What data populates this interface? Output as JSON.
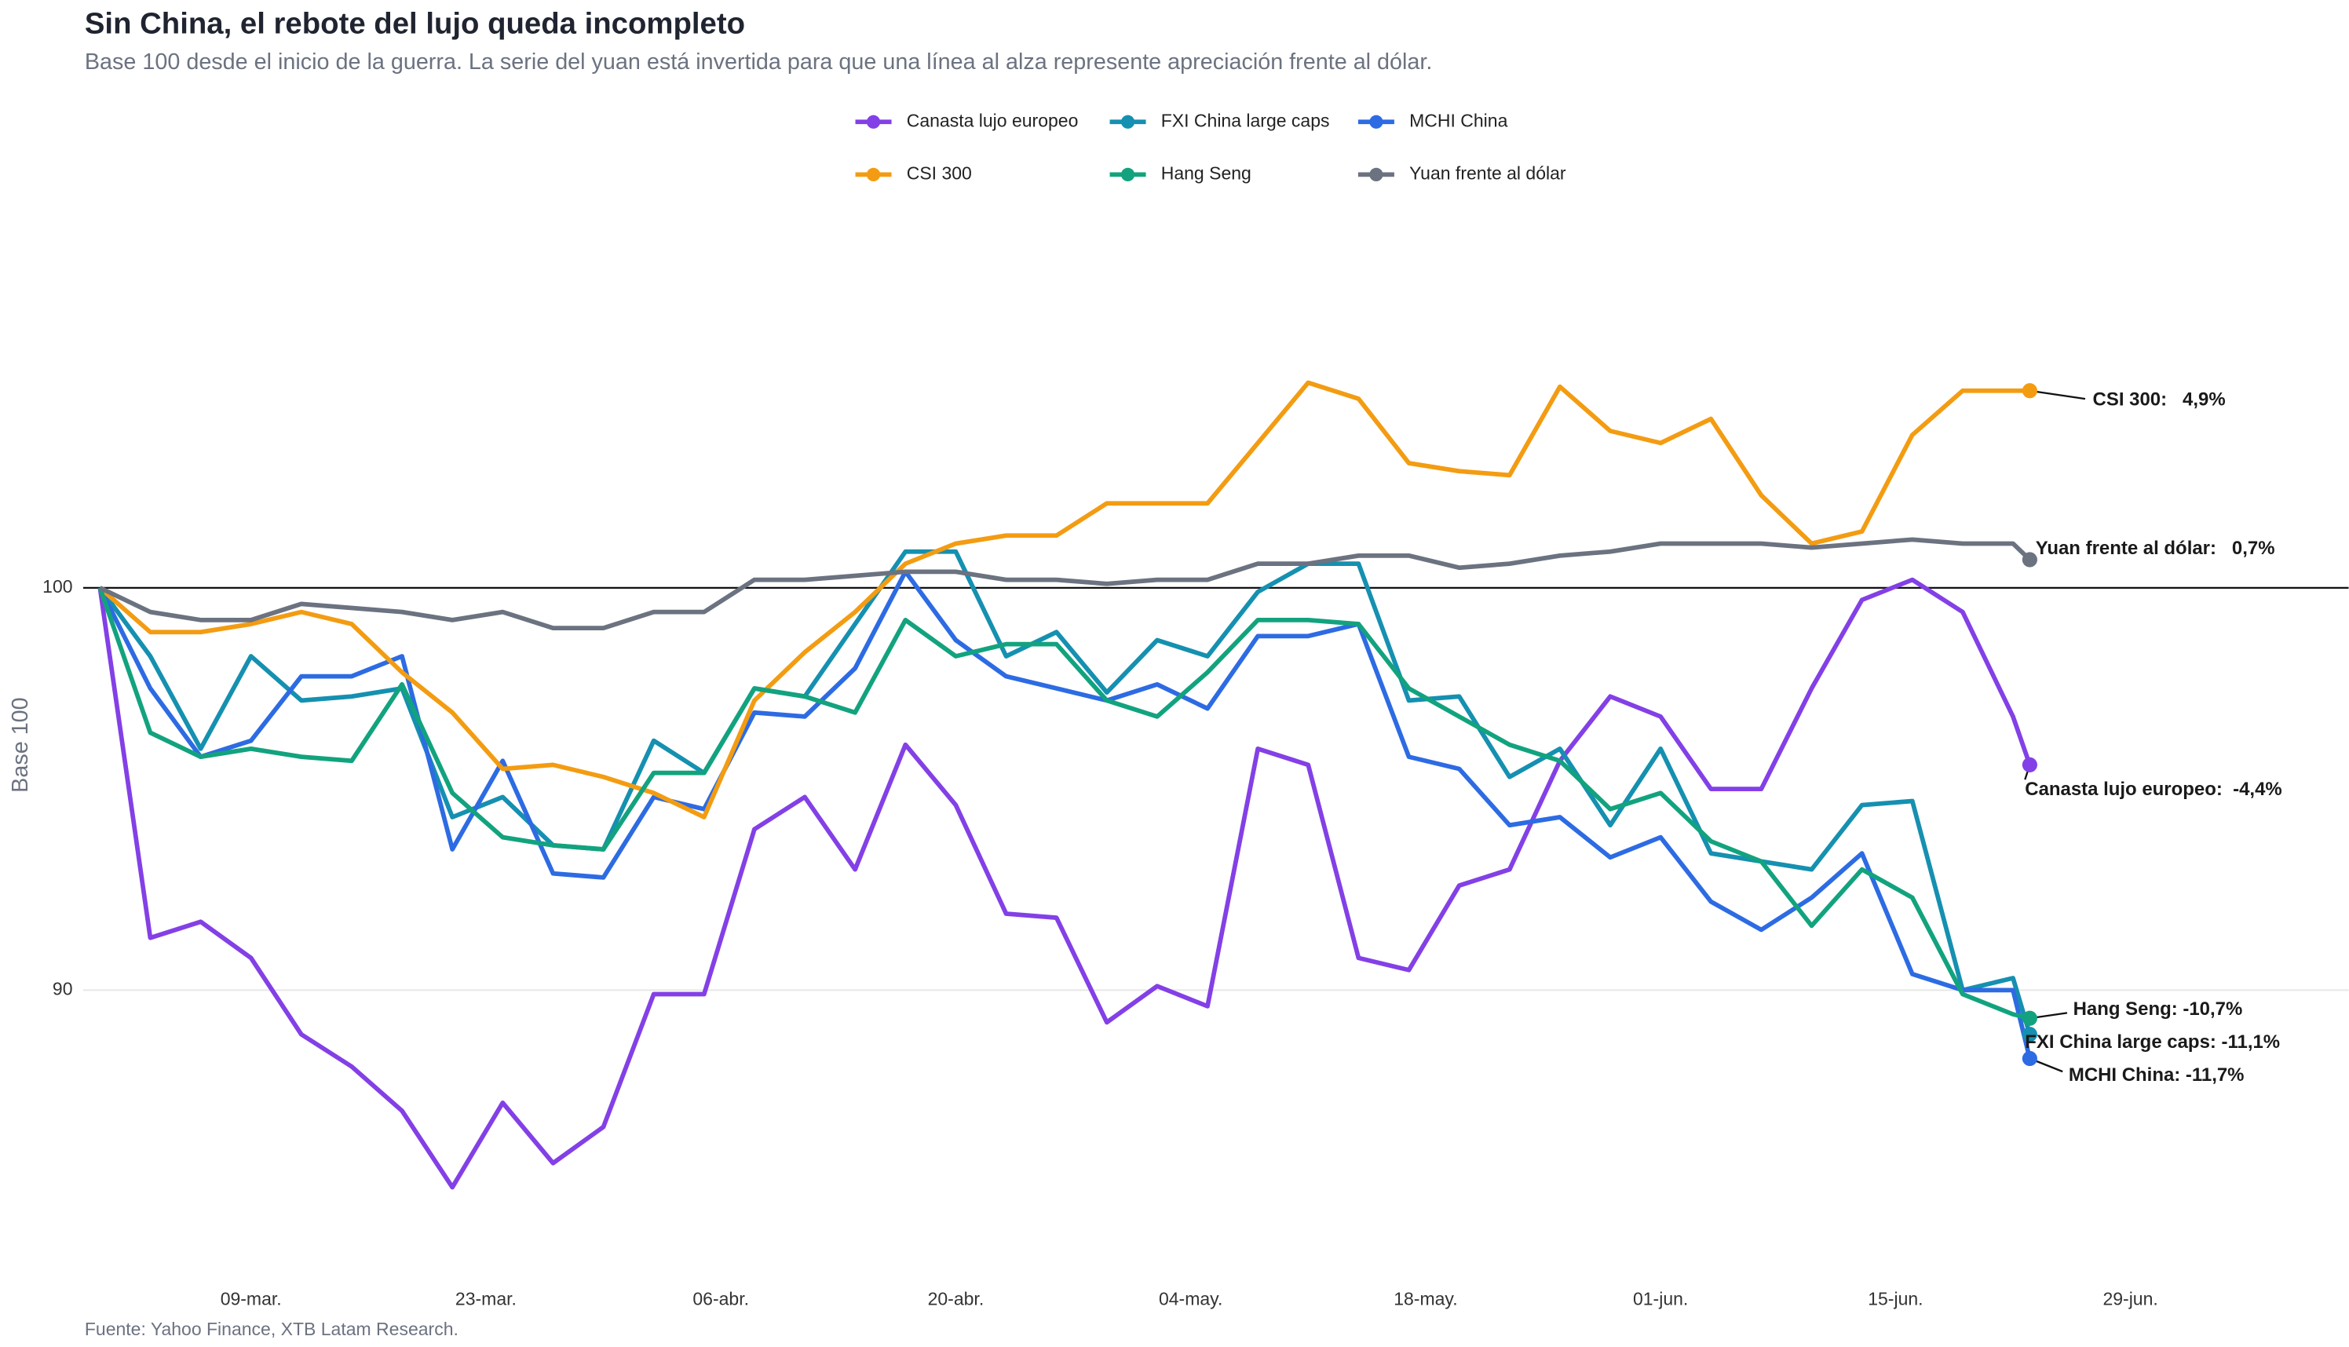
{
  "chart_data": {
    "type": "line",
    "title": "Sin China, el rebote del lujo queda incompleto",
    "subtitle": "Base 100 desde el inicio de la guerra. La serie del yuan está invertida para que una línea al alza represente apreciación frente al dólar.",
    "y_label": "Base 100",
    "source": "Fuente: Yahoo Finance, XTB Latam Research.",
    "x": [
      "02-28",
      "03-03",
      "03-06",
      "03-09",
      "03-12",
      "03-15",
      "03-18",
      "03-21",
      "03-24",
      "03-27",
      "03-30",
      "04-02",
      "04-05",
      "04-08",
      "04-11",
      "04-14",
      "04-17",
      "04-20",
      "04-23",
      "04-26",
      "04-29",
      "05-02",
      "05-05",
      "05-08",
      "05-11",
      "05-14",
      "05-17",
      "05-20",
      "05-23",
      "05-26",
      "05-29",
      "06-01",
      "06-04",
      "06-07",
      "06-10",
      "06-13",
      "06-16",
      "06-19",
      "06-22",
      "06-23"
    ],
    "xlim": [
      "02-27",
      "07-12"
    ],
    "xticks": [
      {
        "value": "03-09",
        "label": "09-mar."
      },
      {
        "value": "03-23",
        "label": "23-mar."
      },
      {
        "value": "04-06",
        "label": "06-abr."
      },
      {
        "value": "04-20",
        "label": "20-abr."
      },
      {
        "value": "05-04",
        "label": "04-may."
      },
      {
        "value": "05-18",
        "label": "18-may."
      },
      {
        "value": "06-01",
        "label": "01-jun."
      },
      {
        "value": "06-15",
        "label": "15-jun."
      },
      {
        "value": "06-29",
        "label": "29-jun."
      }
    ],
    "ylim": [
      83,
      109
    ],
    "yticks": [
      90,
      100
    ],
    "baseline": 100,
    "grid": true,
    "legend": "top",
    "series": [
      {
        "name": "Canasta lujo europeo",
        "color": "#8340e6",
        "end_label": "Canasta lujo europeo:  -4,4%",
        "values": [
          100,
          91.3,
          91.7,
          90.8,
          88.9,
          88.1,
          87.0,
          85.1,
          87.2,
          85.7,
          86.6,
          89.9,
          89.9,
          94.0,
          94.8,
          93.0,
          96.1,
          94.6,
          91.9,
          91.8,
          89.2,
          90.1,
          89.6,
          96.0,
          95.6,
          90.8,
          90.5,
          92.6,
          93.0,
          95.7,
          97.3,
          96.8,
          95.0,
          95.0,
          97.5,
          99.7,
          100.2,
          99.4,
          96.8,
          95.6
        ]
      },
      {
        "name": "FXI China large caps",
        "color": "#1590b0",
        "end_label": "FXI China large caps: -11,1%",
        "values": [
          100,
          98.3,
          96.0,
          98.3,
          97.2,
          97.3,
          97.5,
          94.3,
          94.8,
          93.6,
          93.5,
          96.2,
          95.4,
          97.5,
          97.3,
          99.1,
          100.9,
          100.9,
          98.3,
          98.9,
          97.4,
          98.7,
          98.3,
          99.9,
          100.6,
          100.6,
          97.2,
          97.3,
          95.3,
          96.0,
          94.1,
          96.0,
          93.4,
          93.2,
          93.0,
          94.6,
          94.7,
          90.0,
          90.3,
          88.9
        ]
      },
      {
        "name": "MCHI China",
        "color": "#2d6be3",
        "end_label": "MCHI China: -11,7%",
        "values": [
          100,
          97.5,
          95.8,
          96.2,
          97.8,
          97.8,
          98.3,
          93.5,
          95.7,
          92.9,
          92.8,
          94.8,
          94.5,
          96.9,
          96.8,
          98.0,
          100.4,
          98.7,
          97.8,
          97.5,
          97.2,
          97.6,
          97.0,
          98.8,
          98.8,
          99.1,
          95.8,
          95.5,
          94.1,
          94.3,
          93.3,
          93.8,
          92.2,
          91.5,
          92.3,
          93.4,
          90.4,
          90.0,
          90.0,
          88.3
        ]
      },
      {
        "name": "CSI 300",
        "color": "#f39c12",
        "end_label": "CSI 300:   4,9%",
        "values": [
          100,
          98.9,
          98.9,
          99.1,
          99.4,
          99.1,
          97.9,
          96.9,
          95.5,
          95.6,
          95.3,
          94.9,
          94.3,
          97.2,
          98.4,
          99.4,
          100.6,
          101.1,
          101.3,
          101.3,
          102.1,
          102.1,
          102.1,
          103.6,
          105.1,
          104.7,
          103.1,
          102.9,
          102.8,
          105.0,
          103.9,
          103.6,
          104.2,
          102.3,
          101.1,
          101.4,
          103.8,
          104.9,
          104.9,
          104.9
        ]
      },
      {
        "name": "Hang Seng",
        "color": "#12a37e",
        "end_label": "Hang Seng: -10,7%",
        "values": [
          100,
          96.4,
          95.8,
          96.0,
          95.8,
          95.7,
          97.6,
          94.9,
          93.8,
          93.6,
          93.5,
          95.4,
          95.4,
          97.5,
          97.3,
          96.9,
          99.2,
          98.3,
          98.6,
          98.6,
          97.2,
          96.8,
          97.9,
          99.2,
          99.2,
          99.1,
          97.5,
          96.8,
          96.1,
          95.7,
          94.5,
          94.9,
          93.7,
          93.2,
          91.6,
          93.0,
          92.3,
          89.9,
          89.4,
          89.3
        ]
      },
      {
        "name": "Yuan frente al dólar",
        "color": "#6b7280",
        "end_label": "Yuan frente al dólar:   0,7%",
        "values": [
          100,
          99.4,
          99.2,
          99.2,
          99.6,
          99.5,
          99.4,
          99.2,
          99.4,
          99.0,
          99.0,
          99.4,
          99.4,
          100.2,
          100.2,
          100.3,
          100.4,
          100.4,
          100.2,
          100.2,
          100.1,
          100.2,
          100.2,
          100.6,
          100.6,
          100.8,
          100.8,
          100.5,
          100.6,
          100.8,
          100.9,
          101.1,
          101.1,
          101.1,
          101.0,
          101.1,
          101.2,
          101.1,
          101.1,
          100.7
        ]
      }
    ]
  }
}
